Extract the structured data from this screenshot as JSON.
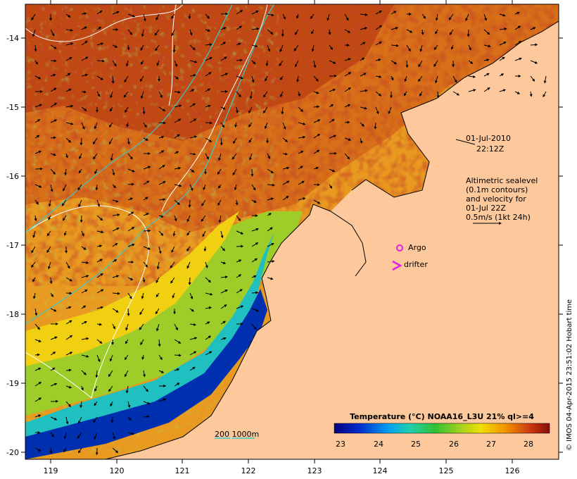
{
  "map": {
    "x_ticks": [
      "119",
      "120",
      "121",
      "122",
      "123",
      "124",
      "125",
      "126"
    ],
    "y_ticks": [
      "-14",
      "-15",
      "-16",
      "-17",
      "-18",
      "-19",
      "-20"
    ],
    "x_range": [
      118.6,
      126.7
    ],
    "y_range": [
      -20.1,
      -13.6
    ]
  },
  "annotations": {
    "date": "01-Jul-2010",
    "time": "22:12Z",
    "legend_lines": [
      "Altimetric sealevel",
      "(0.1m contours)",
      "and velocity for",
      "01-Jul 22Z",
      "0.5m/s (1kt 24h)"
    ],
    "argo_label": "Argo",
    "drifter_label": "drifter",
    "depth_label": "200  1000m"
  },
  "colorbar": {
    "title": "Temperature (°C) NOAA16_L3U 21% ql>=4",
    "ticks": [
      "23",
      "24",
      "25",
      "26",
      "27",
      "28"
    ],
    "range": [
      22.5,
      28.5
    ]
  },
  "credit": "© IMOS 04-Apr-2015 23:51:02 Hobart time",
  "colors": {
    "land": "#fcc89c",
    "contour": "#ffffff",
    "isobath": "#3cc8c8",
    "marker": "#e020e0"
  }
}
